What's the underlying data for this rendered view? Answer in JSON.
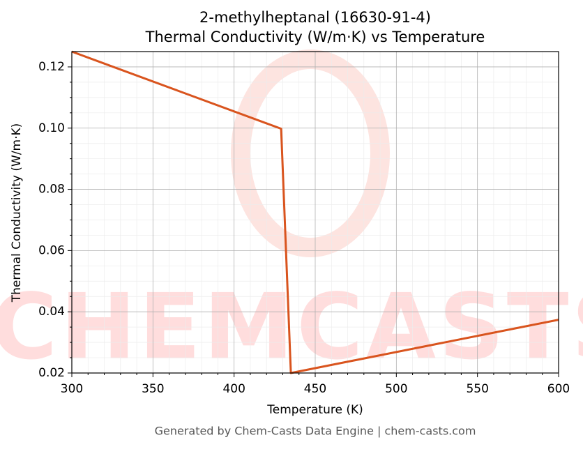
{
  "chart_data": {
    "type": "line",
    "title": "2-methylheptanal (16630-91-4)",
    "subtitle": "Thermal Conductivity (W/m·K) vs Temperature",
    "x_label": "Temperature (K)",
    "y_label": "Thermal Conductivity (W/m·K)",
    "footer": "Generated by Chem-Casts Data Engine | chem-casts.com",
    "watermark": "CHEMCASTS",
    "x": [
      300,
      429,
      435,
      600
    ],
    "series": [
      {
        "name": "Thermal Conductivity",
        "color": "#d9541e",
        "values": [
          0.125,
          0.0998,
          0.02,
          0.0374
        ]
      }
    ],
    "xlim": [
      300,
      600
    ],
    "xticks": [
      300,
      350,
      400,
      450,
      500,
      550,
      600
    ],
    "ylim": [
      0.02,
      0.125
    ],
    "yticks": [
      0.02,
      0.04,
      0.06,
      0.08,
      {
        "value": 0.1,
        "label": "0.10"
      },
      0.12
    ],
    "grid": true,
    "minor_grid": true
  }
}
